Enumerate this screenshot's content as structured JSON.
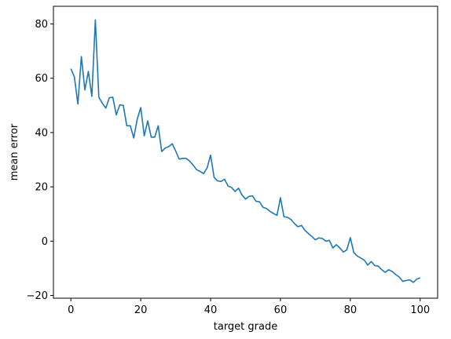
{
  "chart_data": {
    "type": "line",
    "title": "",
    "xlabel": "target grade",
    "ylabel": "mean error",
    "xlim": [
      -5,
      105
    ],
    "ylim": [
      -21,
      86.5
    ],
    "xticks": [
      0,
      20,
      40,
      60,
      80,
      100
    ],
    "yticks": [
      -20,
      0,
      20,
      40,
      60,
      80
    ],
    "grid": false,
    "line_color": "#1f77b4",
    "series": [
      {
        "x": [
          0,
          1,
          2,
          3,
          4,
          5,
          6,
          7,
          8,
          9,
          10,
          11,
          12,
          13,
          14,
          15,
          16,
          17,
          18,
          19,
          20,
          21,
          22,
          23,
          24,
          25,
          26,
          27,
          28,
          29,
          30,
          31,
          32,
          33,
          34,
          35,
          36,
          37,
          38,
          39,
          40,
          41,
          42,
          43,
          44,
          45,
          46,
          47,
          48,
          49,
          50,
          51,
          52,
          53,
          54,
          55,
          56,
          57,
          58,
          59,
          60,
          61,
          62,
          63,
          64,
          65,
          66,
          67,
          68,
          69,
          70,
          71,
          72,
          73,
          74,
          75,
          76,
          77,
          78,
          79,
          80,
          81,
          82,
          83,
          84,
          85,
          86,
          87,
          88,
          89,
          90,
          91,
          92,
          93,
          94,
          95,
          96,
          97,
          98,
          99,
          100
        ],
        "values": [
          63.5,
          60.5,
          50.5,
          68,
          55.7,
          62.5,
          53.3,
          81.5,
          53,
          50.8,
          49,
          52.8,
          53,
          46.5,
          50.2,
          50,
          42.5,
          42.5,
          38,
          45,
          49.2,
          38.8,
          44.3,
          38.3,
          38.3,
          42.5,
          33,
          34.3,
          34.8,
          35.9,
          33.2,
          30.2,
          30.5,
          30.5,
          29.5,
          28,
          26.3,
          25.7,
          24.9,
          27,
          31.7,
          23.5,
          22.2,
          22,
          22.8,
          20.3,
          19.8,
          18.3,
          19.5,
          17,
          15.5,
          16.5,
          16.7,
          14.7,
          14.5,
          12.5,
          12,
          11,
          10.2,
          9.5,
          16,
          9,
          8.8,
          8,
          6.5,
          5.3,
          5.8,
          4,
          2.8,
          1.7,
          0.5,
          1.2,
          1,
          0,
          0.3,
          -2.5,
          -1.3,
          -2.5,
          -4,
          -3.2,
          1.3,
          -4.2,
          -5.5,
          -6.2,
          -7,
          -8.8,
          -7.5,
          -9,
          -9.2,
          -10.5,
          -11.5,
          -10.5,
          -11.2,
          -12.3,
          -13.2,
          -14.8,
          -14.5,
          -14.2,
          -15.2,
          -14,
          -13.5
        ]
      }
    ]
  }
}
